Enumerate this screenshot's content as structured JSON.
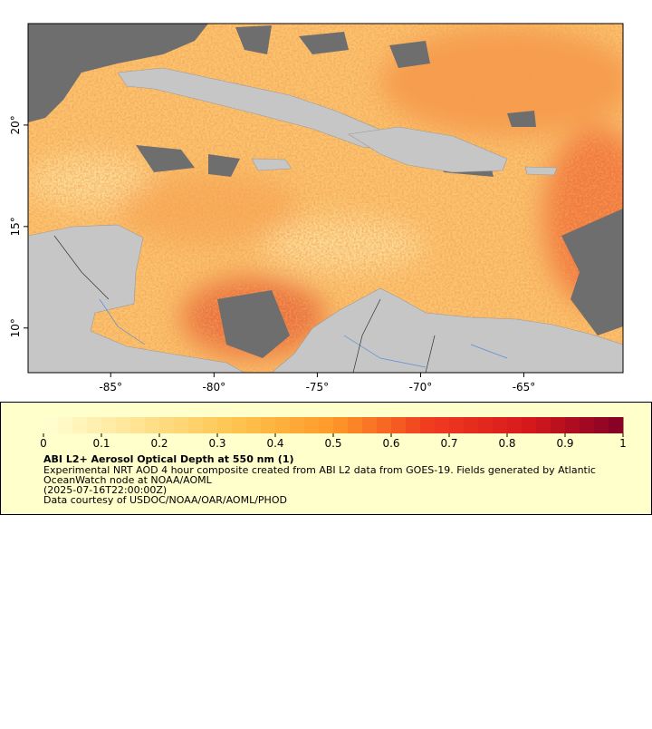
{
  "map": {
    "xlim": [
      -89,
      -60.2
    ],
    "ylim": [
      7.8,
      25
    ],
    "xticks": [
      {
        "value": -85,
        "label": "-85°"
      },
      {
        "value": -80,
        "label": "-80°"
      },
      {
        "value": -75,
        "label": "-75°"
      },
      {
        "value": -70,
        "label": "-70°"
      },
      {
        "value": -65,
        "label": "-65°"
      }
    ],
    "yticks": [
      {
        "value": 10,
        "label": "10°"
      },
      {
        "value": 15,
        "label": "15°"
      },
      {
        "value": 20,
        "label": "20°"
      }
    ]
  },
  "colorbar": {
    "lim": [
      0,
      1
    ],
    "ticks": [
      0,
      0.1,
      0.2,
      0.3,
      0.4,
      0.5,
      0.6,
      0.7,
      0.8,
      0.9,
      1
    ],
    "colors": [
      "#ffffd4",
      "#fee391",
      "#fec44f",
      "#fe9929",
      "#f03b20",
      "#d7191c",
      "#800026"
    ]
  },
  "legend": {
    "title": "ABI L2+ Aerosol Optical Depth at 550 nm (1)",
    "lines": [
      "Experimental NRT AOD 4 hour composite created from ABI L2 data from GOES-19. Fields generated by Atlantic",
      "OceanWatch node at NOAA/AOML",
      "(2025-07-16T22:00:00Z)",
      "Data courtesy of USDOC/NOAA/OAR/AOML/PHOD"
    ]
  }
}
